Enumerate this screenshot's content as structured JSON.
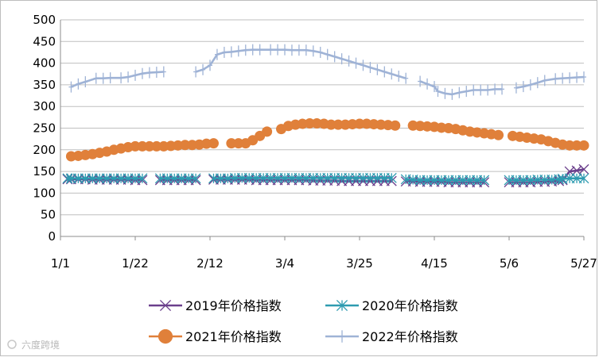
{
  "watermark": "六度跨境",
  "chart_data": {
    "type": "line",
    "title": "",
    "xlabel": "",
    "ylabel": "",
    "ylim": [
      0,
      500
    ],
    "yticks": [
      0,
      50,
      100,
      150,
      200,
      250,
      300,
      350,
      400,
      450,
      500
    ],
    "xlim": [
      0,
      147
    ],
    "xticks": [
      {
        "x": 0,
        "label": "1/1"
      },
      {
        "x": 21,
        "label": "1/22"
      },
      {
        "x": 42,
        "label": "2/12"
      },
      {
        "x": 63,
        "label": "3/4"
      },
      {
        "x": 84,
        "label": "3/25"
      },
      {
        "x": 105,
        "label": "4/15"
      },
      {
        "x": 126,
        "label": "5/6"
      },
      {
        "x": 147,
        "label": "5/27"
      }
    ],
    "grid": "horizontal",
    "legend_position": "bottom",
    "series": [
      {
        "name": "2019年价格指数",
        "color": "#6b3f8c",
        "marker": "x",
        "points": [
          [
            2,
            132
          ],
          [
            3,
            132
          ],
          [
            5,
            132
          ],
          [
            7,
            132
          ],
          [
            9,
            131
          ],
          [
            11,
            131
          ],
          [
            13,
            131
          ],
          [
            15,
            131
          ],
          [
            17,
            131
          ],
          [
            19,
            131
          ],
          [
            21,
            130
          ],
          [
            23,
            130
          ],
          [
            28,
            130
          ],
          [
            30,
            130
          ],
          [
            32,
            130
          ],
          [
            34,
            130
          ],
          [
            36,
            130
          ],
          [
            38,
            130
          ],
          [
            43,
            131
          ],
          [
            45,
            131
          ],
          [
            47,
            131
          ],
          [
            49,
            131
          ],
          [
            51,
            131
          ],
          [
            53,
            131
          ],
          [
            55,
            130
          ],
          [
            57,
            130
          ],
          [
            59,
            130
          ],
          [
            61,
            130
          ],
          [
            63,
            130
          ],
          [
            65,
            130
          ],
          [
            67,
            130
          ],
          [
            69,
            130
          ],
          [
            71,
            129
          ],
          [
            73,
            129
          ],
          [
            75,
            129
          ],
          [
            77,
            129
          ],
          [
            79,
            128
          ],
          [
            81,
            128
          ],
          [
            83,
            128
          ],
          [
            85,
            128
          ],
          [
            87,
            128
          ],
          [
            89,
            128
          ],
          [
            91,
            128
          ],
          [
            93,
            128
          ],
          [
            97,
            127
          ],
          [
            99,
            127
          ],
          [
            101,
            126
          ],
          [
            103,
            126
          ],
          [
            105,
            126
          ],
          [
            107,
            126
          ],
          [
            109,
            125
          ],
          [
            111,
            125
          ],
          [
            113,
            125
          ],
          [
            115,
            125
          ],
          [
            117,
            125
          ],
          [
            119,
            125
          ],
          [
            126,
            125
          ],
          [
            128,
            125
          ],
          [
            130,
            125
          ],
          [
            132,
            125
          ],
          [
            134,
            126
          ],
          [
            136,
            126
          ],
          [
            138,
            127
          ],
          [
            140,
            128
          ],
          [
            141,
            130
          ],
          [
            143,
            150
          ],
          [
            145,
            152
          ],
          [
            147,
            155
          ]
        ]
      },
      {
        "name": "2020年价格指数",
        "color": "#2d9bb0",
        "marker": "asterisk",
        "points": [
          [
            2,
            134
          ],
          [
            3,
            134
          ],
          [
            5,
            134
          ],
          [
            7,
            134
          ],
          [
            9,
            134
          ],
          [
            11,
            134
          ],
          [
            13,
            134
          ],
          [
            15,
            134
          ],
          [
            17,
            134
          ],
          [
            19,
            134
          ],
          [
            21,
            134
          ],
          [
            23,
            134
          ],
          [
            28,
            134
          ],
          [
            30,
            134
          ],
          [
            32,
            134
          ],
          [
            34,
            134
          ],
          [
            36,
            134
          ],
          [
            38,
            134
          ],
          [
            43,
            134
          ],
          [
            45,
            134
          ],
          [
            47,
            134
          ],
          [
            49,
            135
          ],
          [
            51,
            135
          ],
          [
            53,
            135
          ],
          [
            55,
            135
          ],
          [
            57,
            135
          ],
          [
            59,
            135
          ],
          [
            61,
            135
          ],
          [
            63,
            135
          ],
          [
            65,
            135
          ],
          [
            67,
            135
          ],
          [
            69,
            135
          ],
          [
            71,
            135
          ],
          [
            73,
            135
          ],
          [
            75,
            135
          ],
          [
            77,
            135
          ],
          [
            79,
            135
          ],
          [
            81,
            135
          ],
          [
            83,
            135
          ],
          [
            85,
            135
          ],
          [
            87,
            135
          ],
          [
            89,
            135
          ],
          [
            91,
            135
          ],
          [
            93,
            135
          ],
          [
            97,
            132
          ],
          [
            99,
            131
          ],
          [
            101,
            130
          ],
          [
            103,
            130
          ],
          [
            105,
            130
          ],
          [
            107,
            130
          ],
          [
            109,
            130
          ],
          [
            111,
            130
          ],
          [
            113,
            130
          ],
          [
            115,
            130
          ],
          [
            117,
            130
          ],
          [
            119,
            130
          ],
          [
            126,
            130
          ],
          [
            128,
            130
          ],
          [
            130,
            130
          ],
          [
            132,
            130
          ],
          [
            134,
            131
          ],
          [
            136,
            131
          ],
          [
            138,
            131
          ],
          [
            140,
            132
          ],
          [
            141,
            133
          ],
          [
            143,
            134
          ],
          [
            145,
            134
          ],
          [
            147,
            134
          ]
        ]
      },
      {
        "name": "2021年价格指数",
        "color": "#e0803a",
        "marker": "circle",
        "points": [
          [
            3,
            185
          ],
          [
            5,
            186
          ],
          [
            7,
            188
          ],
          [
            9,
            190
          ],
          [
            11,
            193
          ],
          [
            13,
            196
          ],
          [
            15,
            200
          ],
          [
            17,
            203
          ],
          [
            19,
            206
          ],
          [
            21,
            208
          ],
          [
            23,
            208
          ],
          [
            25,
            208
          ],
          [
            27,
            208
          ],
          [
            29,
            208
          ],
          [
            31,
            209
          ],
          [
            33,
            210
          ],
          [
            35,
            211
          ],
          [
            37,
            211
          ],
          [
            39,
            212
          ],
          [
            41,
            214
          ],
          [
            43,
            215
          ],
          [
            48,
            215
          ],
          [
            50,
            215
          ],
          [
            52,
            215
          ],
          [
            54,
            222
          ],
          [
            56,
            232
          ],
          [
            58,
            242
          ],
          [
            62,
            248
          ],
          [
            64,
            255
          ],
          [
            66,
            258
          ],
          [
            68,
            260
          ],
          [
            70,
            261
          ],
          [
            72,
            261
          ],
          [
            74,
            260
          ],
          [
            76,
            258
          ],
          [
            78,
            258
          ],
          [
            80,
            258
          ],
          [
            82,
            259
          ],
          [
            84,
            260
          ],
          [
            86,
            260
          ],
          [
            88,
            259
          ],
          [
            90,
            258
          ],
          [
            92,
            257
          ],
          [
            94,
            256
          ],
          [
            99,
            256
          ],
          [
            101,
            255
          ],
          [
            103,
            254
          ],
          [
            105,
            253
          ],
          [
            107,
            251
          ],
          [
            109,
            250
          ],
          [
            111,
            248
          ],
          [
            113,
            245
          ],
          [
            115,
            242
          ],
          [
            117,
            240
          ],
          [
            119,
            238
          ],
          [
            121,
            236
          ],
          [
            123,
            234
          ],
          [
            127,
            232
          ],
          [
            129,
            230
          ],
          [
            131,
            228
          ],
          [
            133,
            226
          ],
          [
            135,
            224
          ],
          [
            137,
            220
          ],
          [
            139,
            216
          ],
          [
            141,
            212
          ],
          [
            143,
            210
          ],
          [
            145,
            210
          ],
          [
            147,
            210
          ]
        ]
      },
      {
        "name": "2022年价格指数",
        "color": "#9fb3d6",
        "marker": "plus",
        "points": [
          [
            3,
            345
          ],
          [
            5,
            352
          ],
          [
            7,
            357
          ],
          [
            10,
            365
          ],
          [
            12,
            365
          ],
          [
            14,
            366
          ],
          [
            17,
            366
          ],
          [
            19,
            368
          ],
          [
            21,
            372
          ],
          [
            23,
            376
          ],
          [
            25,
            378
          ],
          [
            27,
            379
          ],
          [
            29,
            380
          ],
          [
            38,
            380
          ],
          [
            40,
            385
          ],
          [
            42,
            395
          ],
          [
            44,
            420
          ],
          [
            46,
            425
          ],
          [
            48,
            426
          ],
          [
            50,
            428
          ],
          [
            52,
            430
          ],
          [
            54,
            431
          ],
          [
            56,
            431
          ],
          [
            59,
            431
          ],
          [
            61,
            431
          ],
          [
            63,
            431
          ],
          [
            65,
            430
          ],
          [
            67,
            430
          ],
          [
            69,
            430
          ],
          [
            71,
            428
          ],
          [
            73,
            425
          ],
          [
            75,
            420
          ],
          [
            77,
            415
          ],
          [
            79,
            410
          ],
          [
            81,
            405
          ],
          [
            83,
            400
          ],
          [
            85,
            395
          ],
          [
            87,
            390
          ],
          [
            89,
            385
          ],
          [
            91,
            380
          ],
          [
            93,
            375
          ],
          [
            95,
            370
          ],
          [
            97,
            365
          ],
          [
            101,
            358
          ],
          [
            103,
            352
          ],
          [
            105,
            346
          ],
          [
            106,
            335
          ],
          [
            108,
            330
          ],
          [
            110,
            328
          ],
          [
            112,
            332
          ],
          [
            114,
            335
          ],
          [
            116,
            338
          ],
          [
            118,
            338
          ],
          [
            120,
            338
          ],
          [
            122,
            340
          ],
          [
            124,
            340
          ],
          [
            128,
            343
          ],
          [
            130,
            346
          ],
          [
            132,
            350
          ],
          [
            134,
            355
          ],
          [
            136,
            360
          ],
          [
            139,
            364
          ],
          [
            141,
            365
          ],
          [
            143,
            366
          ],
          [
            145,
            367
          ],
          [
            147,
            368
          ]
        ]
      }
    ]
  }
}
